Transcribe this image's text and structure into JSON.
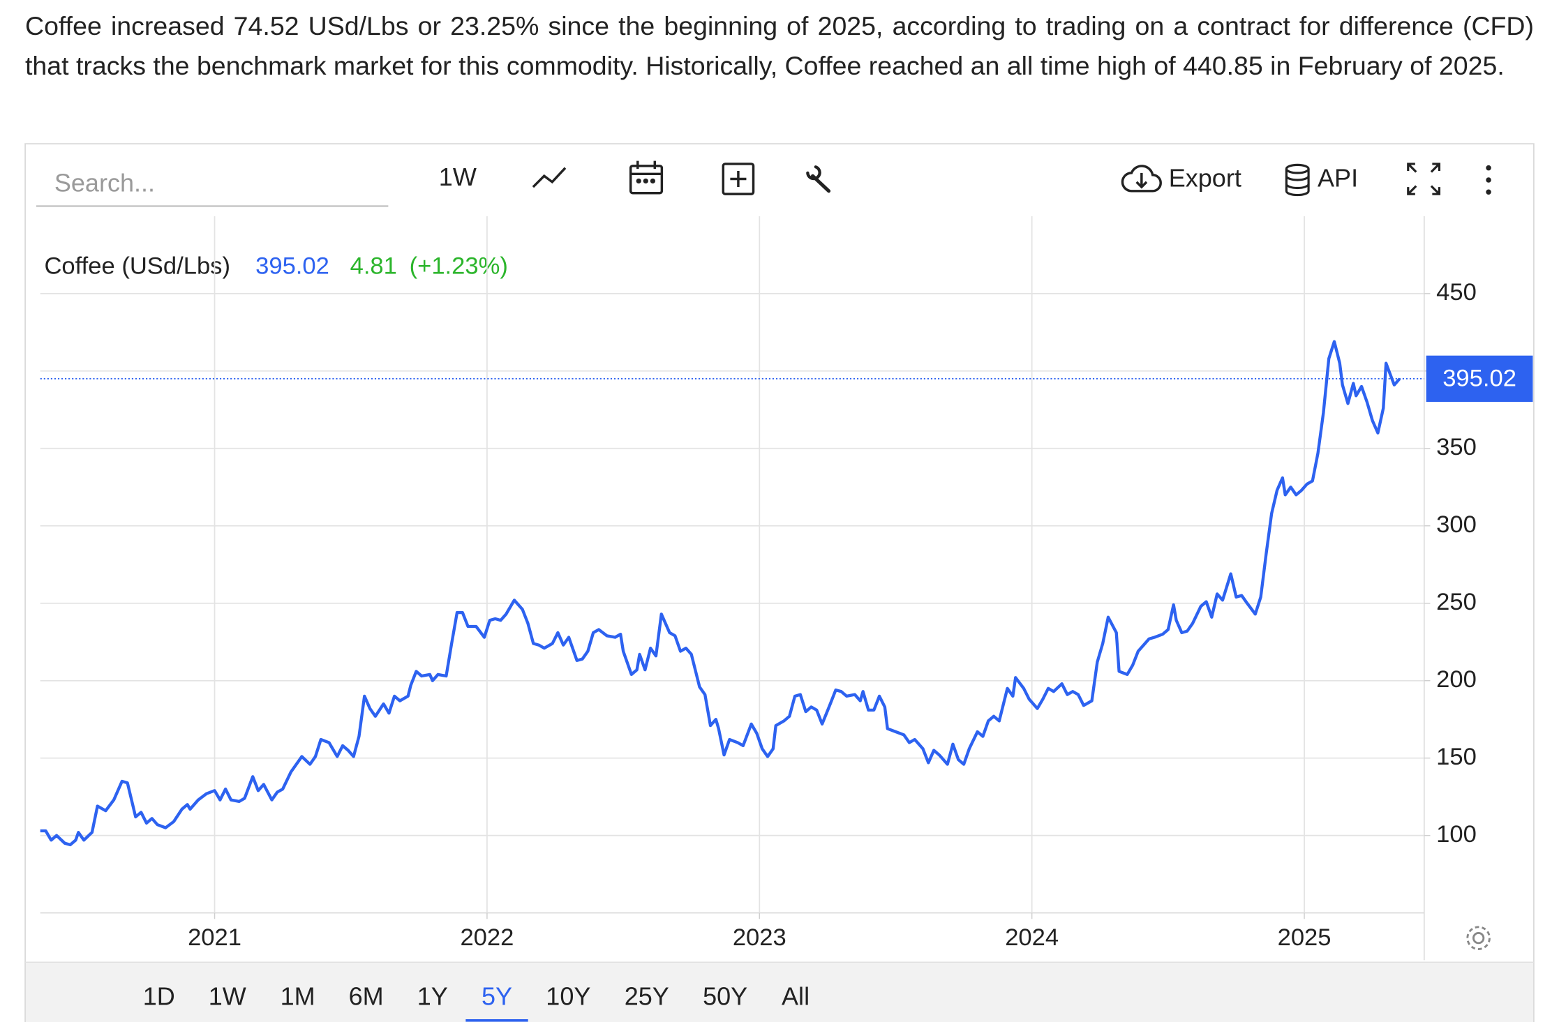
{
  "description": "Coffee increased 74.52 USd/Lbs or 23.25% since the beginning of 2025, according to trading on a contract for difference (CFD) that tracks the benchmark market for this commodity. Historically, Coffee reached an all time high of 440.85 in February of 2025.",
  "toolbar": {
    "search_placeholder": "Search...",
    "interval": "1W",
    "export": "Export",
    "api": "API"
  },
  "header": {
    "name": "Coffee (USd/Lbs)",
    "change": "4.81",
    "change_percent": "(+1.23%)"
  },
  "ranges": [
    "1D",
    "1W",
    "1M",
    "6M",
    "1Y",
    "5Y",
    "10Y",
    "25Y",
    "50Y",
    "All"
  ],
  "selected_range": "5Y",
  "chart_data": {
    "type": "line",
    "xlim": [
      2020.36,
      2025.44
    ],
    "xticks": [
      2021,
      2022,
      2023,
      2024,
      2025
    ],
    "ylim": [
      50,
      500
    ],
    "yticks": [
      100,
      150,
      200,
      250,
      300,
      350,
      400,
      450
    ],
    "yaxis_labels_hidden": [
      400
    ],
    "grid": true,
    "series": [
      {
        "name": "Coffee (USd/Lbs)",
        "color": "#2d62f0",
        "x": [
          2020.36,
          2020.38,
          2020.4,
          2020.42,
          2020.45,
          2020.47,
          2020.49,
          2020.5,
          2020.52,
          2020.55,
          2020.57,
          2020.6,
          2020.63,
          2020.66,
          2020.68,
          2020.71,
          2020.73,
          2020.75,
          2020.77,
          2020.79,
          2020.82,
          2020.85,
          2020.88,
          2020.9,
          2020.91,
          2020.94,
          2020.97,
          2021.0,
          2021.02,
          2021.04,
          2021.06,
          2021.09,
          2021.11,
          2021.14,
          2021.16,
          2021.18,
          2021.21,
          2021.23,
          2021.25,
          2021.28,
          2021.32,
          2021.35,
          2021.37,
          2021.39,
          2021.42,
          2021.45,
          2021.47,
          2021.49,
          2021.51,
          2021.53,
          2021.55,
          2021.57,
          2021.59,
          2021.62,
          2021.64,
          2021.66,
          2021.68,
          2021.71,
          2021.72,
          2021.74,
          2021.76,
          2021.79,
          2021.8,
          2021.82,
          2021.85,
          2021.87,
          2021.89,
          2021.91,
          2021.93,
          2021.96,
          2021.99,
          2022.01,
          2022.03,
          2022.05,
          2022.07,
          2022.1,
          2022.13,
          2022.15,
          2022.17,
          2022.19,
          2022.21,
          2022.24,
          2022.26,
          2022.28,
          2022.3,
          2022.33,
          2022.35,
          2022.37,
          2022.39,
          2022.41,
          2022.44,
          2022.47,
          2022.49,
          2022.5,
          2022.53,
          2022.55,
          2022.56,
          2022.58,
          2022.6,
          2022.62,
          2022.64,
          2022.67,
          2022.69,
          2022.71,
          2022.73,
          2022.75,
          2022.78,
          2022.8,
          2022.82,
          2022.84,
          2022.85,
          2022.87,
          2022.89,
          2022.92,
          2022.94,
          2022.97,
          2022.99,
          2023.01,
          2023.03,
          2023.05,
          2023.06,
          2023.09,
          2023.11,
          2023.13,
          2023.15,
          2023.17,
          2023.19,
          2023.21,
          2023.23,
          2023.26,
          2023.28,
          2023.3,
          2023.32,
          2023.35,
          2023.37,
          2023.38,
          2023.4,
          2023.42,
          2023.44,
          2023.46,
          2023.47,
          2023.5,
          2023.53,
          2023.55,
          2023.57,
          2023.6,
          2023.62,
          2023.64,
          2023.66,
          2023.69,
          2023.71,
          2023.73,
          2023.75,
          2023.77,
          2023.8,
          2023.82,
          2023.84,
          2023.86,
          2023.88,
          2023.91,
          2023.93,
          2023.94,
          2023.97,
          2023.99,
          2024.02,
          2024.04,
          2024.06,
          2024.08,
          2024.11,
          2024.13,
          2024.15,
          2024.17,
          2024.19,
          2024.22,
          2024.24,
          2024.26,
          2024.28,
          2024.31,
          2024.32,
          2024.35,
          2024.37,
          2024.39,
          2024.41,
          2024.43,
          2024.45,
          2024.48,
          2024.5,
          2024.52,
          2024.53,
          2024.55,
          2024.57,
          2024.59,
          2024.62,
          2024.64,
          2024.66,
          2024.68,
          2024.7,
          2024.73,
          2024.75,
          2024.77,
          2024.79,
          2024.82,
          2024.84,
          2024.86,
          2024.88,
          2024.9,
          2024.92,
          2024.93,
          2024.95,
          2024.97,
          2024.99,
          2025.01,
          2025.03,
          2025.05,
          2025.07,
          2025.09,
          2025.11,
          2025.13,
          2025.14,
          2025.16,
          2025.18,
          2025.19,
          2025.21,
          2025.23,
          2025.25,
          2025.27,
          2025.29,
          2025.3,
          2025.33,
          2025.35
        ],
        "values": [
          103,
          103,
          97,
          100,
          95,
          94,
          97,
          102,
          97,
          102,
          119,
          116,
          123,
          135,
          134,
          112,
          115,
          108,
          111,
          107,
          105,
          109,
          117,
          120,
          117,
          123,
          127,
          129,
          123,
          130,
          123,
          122,
          124,
          138,
          129,
          133,
          123,
          128,
          130,
          141,
          151,
          146,
          151,
          162,
          160,
          151,
          158,
          155,
          151,
          164,
          190,
          182,
          177,
          185,
          179,
          190,
          187,
          190,
          197,
          206,
          203,
          204,
          200,
          204,
          203,
          224,
          244,
          244,
          235,
          235,
          228,
          239,
          240,
          239,
          243,
          252,
          246,
          237,
          224,
          223,
          221,
          224,
          231,
          223,
          228,
          213,
          214,
          219,
          231,
          233,
          229,
          228,
          230,
          219,
          204,
          207,
          217,
          207,
          221,
          216,
          243,
          231,
          229,
          219,
          221,
          217,
          196,
          191,
          171,
          175,
          169,
          152,
          162,
          160,
          158,
          172,
          166,
          156,
          151,
          156,
          171,
          174,
          177,
          190,
          191,
          180,
          183,
          181,
          172,
          185,
          194,
          193,
          190,
          191,
          187,
          193,
          181,
          181,
          190,
          183,
          169,
          167,
          165,
          160,
          162,
          156,
          147,
          155,
          152,
          146,
          159,
          149,
          146,
          156,
          167,
          164,
          174,
          177,
          174,
          195,
          190,
          202,
          195,
          188,
          182,
          188,
          195,
          193,
          198,
          191,
          193,
          191,
          184,
          187,
          212,
          224,
          241,
          231,
          206,
          204,
          210,
          219,
          223,
          227,
          228,
          230,
          233,
          249,
          239,
          231,
          232,
          237,
          248,
          251,
          241,
          256,
          252,
          269,
          254,
          255,
          250,
          243,
          254,
          282,
          308,
          323,
          331,
          320,
          325,
          320,
          323,
          327,
          329,
          347,
          373,
          408,
          419,
          405,
          391,
          379,
          392,
          384,
          390,
          380,
          368,
          360,
          376,
          405,
          391,
          395.02
        ]
      }
    ]
  }
}
